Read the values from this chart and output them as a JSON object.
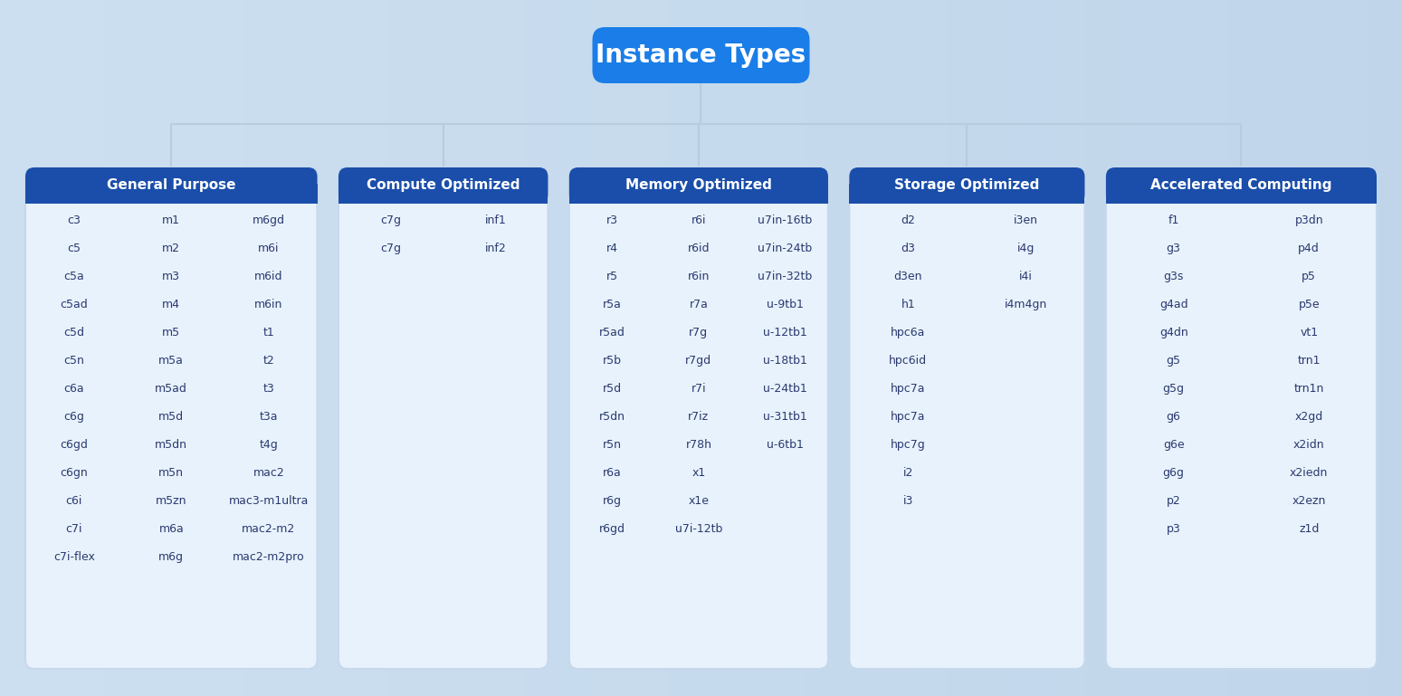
{
  "title": "Instance Types",
  "bg_color_top": "#ccdff0",
  "bg_color_bottom": "#d8e8f5",
  "header_color_title": "#1a7de8",
  "header_color_cat": "#1a4eaa",
  "box_bg_color": "#e8f2fc",
  "box_border_color": "#c8d8ec",
  "title_text_color": "#ffffff",
  "item_text_color": "#2a3a70",
  "line_color": "#b8ccde",
  "categories": [
    {
      "name": "General Purpose",
      "columns": [
        [
          "c3",
          "c5",
          "c5a",
          "c5ad",
          "c5d",
          "c5n",
          "c6a",
          "c6g",
          "c6gd",
          "c6gn",
          "c6i",
          "c7i",
          "c7i-flex"
        ],
        [
          "m1",
          "m2",
          "m3",
          "m4",
          "m5",
          "m5a",
          "m5ad",
          "m5d",
          "m5dn",
          "m5n",
          "m5zn",
          "m6a",
          "m6g"
        ],
        [
          "m6gd",
          "m6i",
          "m6id",
          "m6in",
          "t1",
          "t2",
          "t3",
          "t3a",
          "t4g",
          "mac2",
          "mac3-m1ultra",
          "mac2-m2",
          "mac2-m2pro"
        ]
      ]
    },
    {
      "name": "Compute Optimized",
      "columns": [
        [
          "c7g",
          "c7g"
        ],
        [
          "inf1",
          "inf2"
        ]
      ]
    },
    {
      "name": "Memory Optimized",
      "columns": [
        [
          "r3",
          "r4",
          "r5",
          "r5a",
          "r5ad",
          "r5b",
          "r5d",
          "r5dn",
          "r5n",
          "r6a",
          "r6g",
          "r6gd"
        ],
        [
          "r6i",
          "r6id",
          "r6in",
          "r7a",
          "r7g",
          "r7gd",
          "r7i",
          "r7iz",
          "r78h",
          "x1",
          "x1e",
          "u7i-12tb"
        ],
        [
          "u7in-16tb",
          "u7in-24tb",
          "u7in-32tb",
          "u-9tb1",
          "u-12tb1",
          "u-18tb1",
          "u-24tb1",
          "u-31tb1",
          "u-6tb1",
          "",
          "",
          ""
        ]
      ]
    },
    {
      "name": "Storage Optimized",
      "columns": [
        [
          "d2",
          "d3",
          "d3en",
          "h1",
          "hpc6a",
          "hpc6id",
          "hpc7a",
          "hpc7a",
          "hpc7g",
          "i2",
          "i3"
        ],
        [
          "i3en",
          "i4g",
          "i4i",
          "i4m4gn",
          "",
          "",
          "",
          "",
          "",
          "",
          ""
        ]
      ]
    },
    {
      "name": "Accelerated Computing",
      "columns": [
        [
          "f1",
          "g3",
          "g3s",
          "g4ad",
          "g4dn",
          "g5",
          "g5g",
          "g6",
          "g6e",
          "g6g",
          "p2",
          "p3"
        ],
        [
          "p3dn",
          "p4d",
          "p5",
          "p5e",
          "vt1",
          "trn1",
          "trn1n",
          "x2gd",
          "x2idn",
          "x2iedn",
          "x2ezn",
          "z1d"
        ]
      ]
    }
  ],
  "figsize": [
    15.49,
    7.69
  ],
  "dpi": 100
}
